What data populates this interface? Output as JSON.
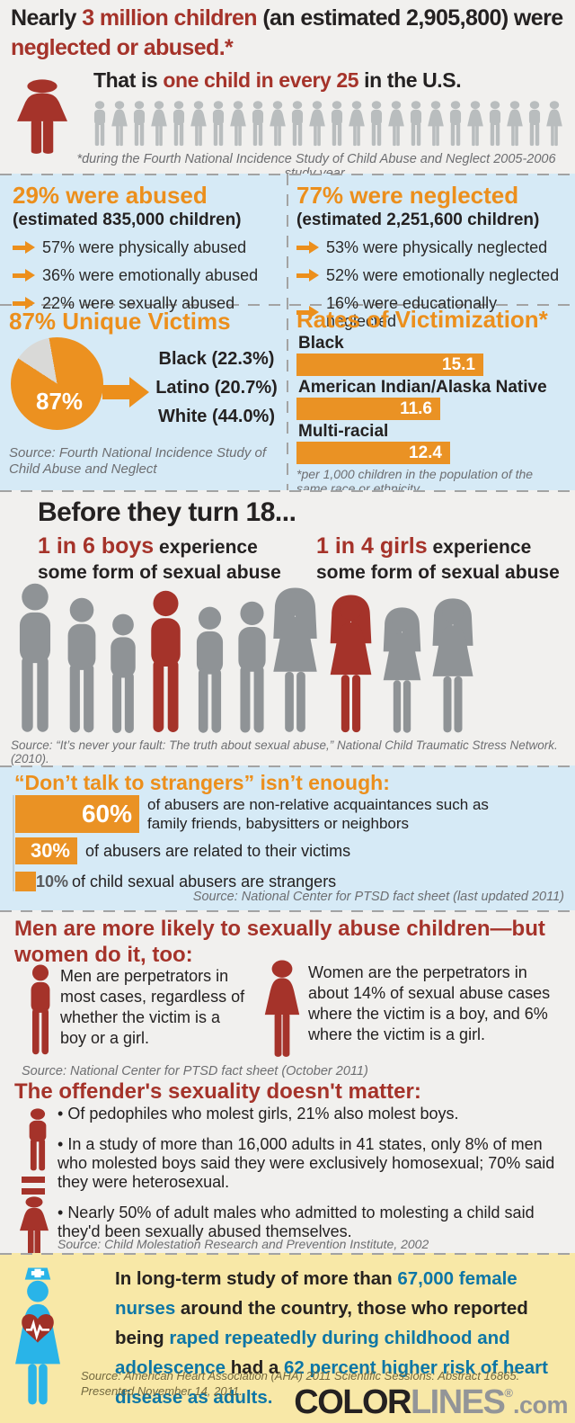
{
  "colors": {
    "orange": "#ec8f1c",
    "brick_red": "#a5332a",
    "light_blue_bg": "#d6eaf6",
    "gray_bg": "#f1f0ee",
    "yellow_bg": "#f8e8a7",
    "blue_text": "#0d76a6",
    "nurse_blue": "#29b4e8",
    "crowd_gray": "#b9bdbe",
    "silhouette_gray": "#8f9396",
    "source_gray": "#6d6e71"
  },
  "header": {
    "t1": "Nearly ",
    "t2": "3 million children",
    "t3": " (an estimated 2,905,800) were",
    "t4": "neglected or abused.*",
    "s1": "That is ",
    "s2": "one child in every 25",
    "s3": " in the U.S.",
    "crowd_gray_figures": 24,
    "footnote": "*during the Fourth National Incidence Study of Child Abuse and Neglect 2005-2006 study year."
  },
  "abused": {
    "heading": "29% were abused",
    "subheading": "(estimated 835,000 children)",
    "items": [
      "57% were physically abused",
      "36% were emotionally abused",
      "22% were sexually abused"
    ]
  },
  "neglected": {
    "heading": "77% were neglected",
    "subheading": "(estimated 2,251,600 children)",
    "items": [
      "53% were physically neglected",
      "52% were emotionally neglected",
      "16% were educationally neglected"
    ]
  },
  "unique": {
    "heading": "87% Unique Victims",
    "pie_label": "87%",
    "lines": [
      "Black (22.3%)",
      "Latino (20.7%)",
      "White (44.0%)"
    ],
    "source": "Source: Fourth National Incidence Study of Child Abuse and Neglect"
  },
  "rates": {
    "heading": "Rates of Victimization*",
    "bars": [
      {
        "label": "Black",
        "value": 15.1
      },
      {
        "label": "American Indian/Alaska Native",
        "value": 11.6
      },
      {
        "label": "Multi-racial",
        "value": 12.4
      }
    ],
    "footnote": "*per 1,000 children in the population of the same race or ethnicity."
  },
  "before18": {
    "heading": "Before they turn 18...",
    "boys_red": "1 in 6 boys",
    "boys_rest": " experience",
    "boys_line2": "some form of sexual abuse",
    "girls_red": "1 in 4 girls",
    "girls_rest": " experience",
    "girls_line2": "some form of sexual abuse",
    "boys_count": 6,
    "boys_red_position": 4,
    "girls_count": 4,
    "girls_red_position": 2,
    "source": "Source: “It’s never your fault: The truth about sexual abuse,” National Child Traumatic Stress Network. (2010)."
  },
  "strangers": {
    "heading": "“Don’t talk to strangers” isn’t enough:",
    "bars": [
      {
        "pct": "60%",
        "value": 60,
        "text": "of abusers are non-relative acquaintances such as family friends, babysitters or neighbors"
      },
      {
        "pct": "30%",
        "value": 30,
        "text": "of abusers are related to their victims"
      },
      {
        "pct": "10%",
        "value": 10,
        "text": "of child sexual abusers are strangers"
      }
    ],
    "source": "Source: National Center for PTSD fact sheet (last updated 2011)"
  },
  "perpetrators": {
    "heading1": "Men are more likely to sexually abuse children—but",
    "heading2": "women do it, too:",
    "men_text": "Men are perpetrators in most cases, regardless of whether the victim is a boy or a girl.",
    "women_text": "Women are the perpetrators in about 14% of sexual abuse cases where the victim is a boy, and 6% where the victim is a girl.",
    "source": "Source: National Center for PTSD fact sheet (October 2011)"
  },
  "sexuality": {
    "heading": "The offender's sexuality doesn't matter:",
    "bullets": [
      "Of pedophiles who molest girls, 21% also molest boys.",
      "In a study of more than 16,000 adults in 41 states, only 8% of men who molested boys said they were exclusively homosexual; 70% said they were heterosexual.",
      "Nearly 50% of adult males who admitted to molesting a child said they'd been sexually abused themselves."
    ],
    "source": "Source: Child Molestation Research and Prevention Institute, 2002"
  },
  "nurses": {
    "seg1": "In long-term study of more than ",
    "seg2": "67,000 female nurses",
    "seg3": " around the country, those who reported being ",
    "seg4": "raped repeatedly during childhood and adolescence",
    "seg5": " had a ",
    "seg6": "62 percent higher risk of heart disease as adults.",
    "source1": "Source: American Heart Association (AHA) 2011 Scientific Sessions: Abstract 16865.",
    "source2": "Presented November 14, 2011."
  },
  "logo": {
    "part1": "COLOR",
    "part2": "LINES",
    "reg": "®",
    "part3": ".com"
  },
  "chart_data": [
    {
      "type": "pie",
      "title": "87% Unique Victims",
      "slices": [
        {
          "label": "Unique victims",
          "value": 87
        },
        {
          "label": "Remaining",
          "value": 13
        }
      ],
      "annotations": [
        "Black (22.3%)",
        "Latino (20.7%)",
        "White (44.0%)"
      ],
      "source": "Fourth National Incidence Study of Child Abuse and Neglect"
    },
    {
      "type": "bar",
      "orientation": "horizontal",
      "title": "Rates of Victimization (per 1,000 children in the population of the same race or ethnicity)",
      "categories": [
        "Black",
        "American Indian/Alaska Native",
        "Multi-racial"
      ],
      "values": [
        15.1,
        11.6,
        12.4
      ],
      "xlim": [
        0,
        15.1
      ]
    },
    {
      "type": "bar",
      "orientation": "horizontal",
      "title": "“Don’t talk to strangers” isn’t enough",
      "categories": [
        "Non-relative acquaintances (family friends, babysitters or neighbors)",
        "Related to their victims",
        "Strangers"
      ],
      "values": [
        60,
        30,
        10
      ],
      "unit": "%",
      "xlim": [
        0,
        100
      ]
    }
  ]
}
